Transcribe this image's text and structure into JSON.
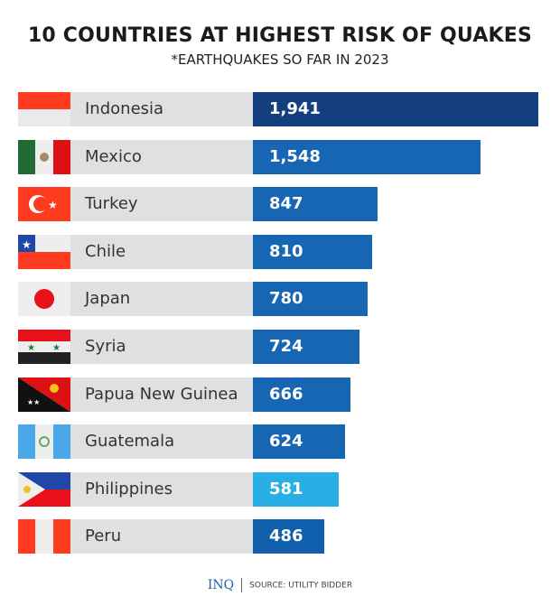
{
  "chart_data": {
    "type": "bar",
    "orientation": "horizontal",
    "title": "10 COUNTRIES AT HIGHEST RISK OF QUAKES",
    "subtitle": "*EARTHQUAKES SO FAR IN 2023",
    "categories": [
      "Indonesia",
      "Mexico",
      "Turkey",
      "Chile",
      "Japan",
      "Syria",
      "Papua New Guinea",
      "Guatemala",
      "Philippines",
      "Peru"
    ],
    "values": [
      1941,
      1548,
      847,
      810,
      780,
      724,
      666,
      624,
      581,
      486
    ],
    "value_labels": [
      "1,941",
      "1,548",
      "847",
      "810",
      "780",
      "724",
      "666",
      "624",
      "581",
      "486"
    ],
    "bar_colors": [
      "#133f7e",
      "#1766b3",
      "#1766b3",
      "#1766b3",
      "#1766b3",
      "#1766b3",
      "#1766b3",
      "#1766b3",
      "#29aee6",
      "#1160ae"
    ],
    "xlim": [
      0,
      1941
    ],
    "grid": false,
    "legend": "none"
  },
  "flags": [
    "indonesia-flag",
    "mexico-flag",
    "turkey-flag",
    "chile-flag",
    "japan-flag",
    "syria-flag",
    "papua-new-guinea-flag",
    "guatemala-flag",
    "philippines-flag",
    "peru-flag"
  ],
  "footer": {
    "logo": "INQ",
    "source": "SOURCE: UTILITY BIDDER"
  }
}
